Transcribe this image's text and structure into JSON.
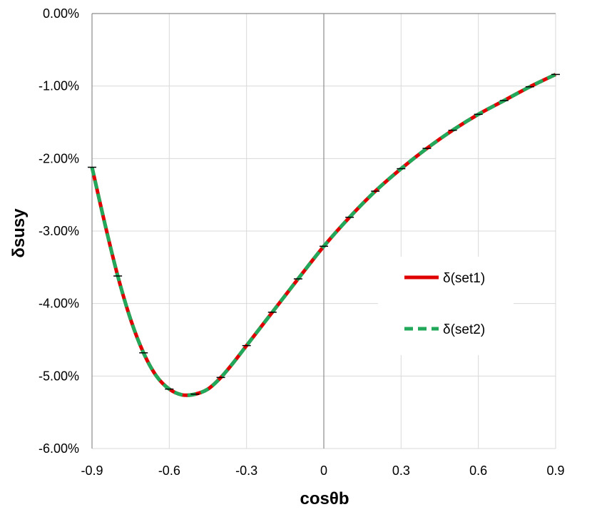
{
  "chart_data": {
    "type": "line",
    "title": "",
    "xlabel": "cosθb",
    "ylabel": "δsusy",
    "xlim": [
      -0.9,
      0.9
    ],
    "ylim": [
      -0.06,
      0.0
    ],
    "grid": true,
    "legend_position": "right",
    "x_ticks": [
      "-0.9",
      "-0.6",
      "-0.3",
      "0",
      "0.3",
      "0.6",
      "0.9"
    ],
    "x_tick_values": [
      -0.9,
      -0.6,
      -0.3,
      0,
      0.3,
      0.6,
      0.9
    ],
    "y_ticks": [
      "0.00%",
      "-1.00%",
      "-2.00%",
      "-3.00%",
      "-4.00%",
      "-5.00%",
      "-6.00%"
    ],
    "y_tick_values": [
      0.0,
      -0.01,
      -0.02,
      -0.03,
      -0.04,
      -0.05,
      -0.06
    ],
    "series": [
      {
        "name": "δ(set1)",
        "color": "#e00000",
        "style": "solid",
        "x": [
          -0.9,
          -0.85,
          -0.8,
          -0.75,
          -0.7,
          -0.65,
          -0.6,
          -0.55,
          -0.5,
          -0.45,
          -0.4,
          -0.35,
          -0.3,
          -0.2,
          -0.1,
          0,
          0.1,
          0.2,
          0.3,
          0.4,
          0.5,
          0.6,
          0.7,
          0.8,
          0.9
        ],
        "y": [
          -0.0212,
          -0.029,
          -0.0362,
          -0.0422,
          -0.0468,
          -0.05,
          -0.0518,
          -0.0526,
          -0.0525,
          -0.0518,
          -0.0502,
          -0.0481,
          -0.0458,
          -0.0412,
          -0.0366,
          -0.0321,
          -0.0281,
          -0.0245,
          -0.0214,
          -0.0186,
          -0.0161,
          -0.0139,
          -0.012,
          -0.0101,
          -0.0084
        ]
      },
      {
        "name": "δ(set2)",
        "color": "#22a85a",
        "style": "dashed",
        "x": [
          -0.9,
          -0.85,
          -0.8,
          -0.75,
          -0.7,
          -0.65,
          -0.6,
          -0.55,
          -0.5,
          -0.45,
          -0.4,
          -0.35,
          -0.3,
          -0.2,
          -0.1,
          0,
          0.1,
          0.2,
          0.3,
          0.4,
          0.5,
          0.6,
          0.7,
          0.8,
          0.9
        ],
        "y": [
          -0.0212,
          -0.029,
          -0.0362,
          -0.0422,
          -0.0468,
          -0.05,
          -0.0518,
          -0.0526,
          -0.0525,
          -0.0518,
          -0.0502,
          -0.0481,
          -0.0458,
          -0.0412,
          -0.0366,
          -0.0321,
          -0.0281,
          -0.0245,
          -0.0214,
          -0.0186,
          -0.0161,
          -0.0139,
          -0.012,
          -0.0101,
          -0.0084
        ]
      }
    ],
    "error_bar_points": [
      {
        "x": -0.9,
        "y": -0.0212
      },
      {
        "x": -0.8,
        "y": -0.0362
      },
      {
        "x": -0.7,
        "y": -0.0468
      },
      {
        "x": -0.6,
        "y": -0.0518
      },
      {
        "x": -0.5,
        "y": -0.0525
      },
      {
        "x": -0.4,
        "y": -0.0502
      },
      {
        "x": -0.3,
        "y": -0.0458
      },
      {
        "x": -0.2,
        "y": -0.0412
      },
      {
        "x": -0.1,
        "y": -0.0366
      },
      {
        "x": 0,
        "y": -0.0321
      },
      {
        "x": 0.1,
        "y": -0.0281
      },
      {
        "x": 0.2,
        "y": -0.0245
      },
      {
        "x": 0.3,
        "y": -0.0214
      },
      {
        "x": 0.4,
        "y": -0.0186
      },
      {
        "x": 0.5,
        "y": -0.0161
      },
      {
        "x": 0.6,
        "y": -0.0139
      },
      {
        "x": 0.7,
        "y": -0.012
      },
      {
        "x": 0.8,
        "y": -0.0101
      },
      {
        "x": 0.9,
        "y": -0.0084
      }
    ],
    "colors": {
      "grid": "#d9d9d9",
      "axis": "#8c8c8c",
      "text": "#000000"
    }
  }
}
